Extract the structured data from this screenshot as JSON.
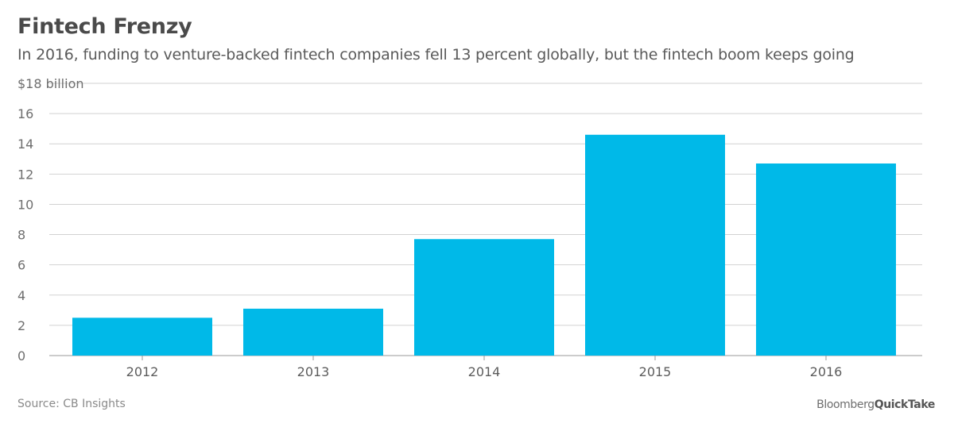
{
  "header": {
    "title": "Fintech Frenzy",
    "subtitle": "In 2016, funding to venture-backed fintech companies fell 13 percent globally, but the fintech boom keeps going"
  },
  "footer": {
    "source": "Source: CB Insights",
    "brand_part1": "Bloomberg",
    "brand_part2": "QuickTake"
  },
  "colors": {
    "bar": "#00b9e8",
    "grid": "#d2d2d2",
    "axis": "#9a9a9a"
  },
  "chart_data": {
    "type": "bar",
    "title": "Fintech Frenzy",
    "subtitle": "In 2016, funding to venture-backed fintech companies fell 13 percent globally, but the fintech boom keeps going",
    "categories": [
      "2012",
      "2013",
      "2014",
      "2015",
      "2016"
    ],
    "values": [
      2.5,
      3.1,
      7.7,
      14.6,
      12.7
    ],
    "ylim": [
      0,
      18
    ],
    "yticks": [
      0,
      2,
      4,
      6,
      8,
      10,
      12,
      14,
      16,
      18
    ],
    "ytick_labels": [
      "0",
      "2",
      "4",
      "6",
      "8",
      "10",
      "12",
      "14",
      "16",
      "$18 billion"
    ],
    "xlabel": "",
    "ylabel": "",
    "grid": true,
    "legend": "none"
  }
}
